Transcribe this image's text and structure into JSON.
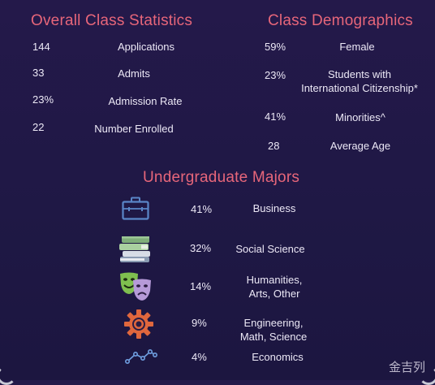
{
  "overall": {
    "title": "Overall Class Statistics",
    "rows": [
      {
        "value": "144",
        "label": "Applications"
      },
      {
        "value": "33",
        "label": "Admits"
      },
      {
        "value": "23%",
        "label": "Admission Rate"
      },
      {
        "value": "22",
        "label": "Number Enrolled"
      }
    ]
  },
  "demographics": {
    "title": "Class Demographics",
    "rows": [
      {
        "value": "59%",
        "label": "Female"
      },
      {
        "value": "23%",
        "label_line1": "Students with",
        "label_line2": "International Citizenship*"
      },
      {
        "value": "41%",
        "label": "Minorities^"
      },
      {
        "value": "28",
        "label": "Average Age"
      }
    ]
  },
  "majors": {
    "title": "Undergraduate Majors",
    "rows": [
      {
        "icon": "briefcase-icon",
        "value": "41%",
        "label": "Business"
      },
      {
        "icon": "books-icon",
        "value": "32%",
        "label": "Social Science"
      },
      {
        "icon": "theater-masks-icon",
        "value": "14%",
        "label_line1": "Humanities,",
        "label_line2": "Arts, Other"
      },
      {
        "icon": "gear-icon",
        "value": "9%",
        "label_line1": "Engineering,",
        "label_line2": "Math, Science"
      },
      {
        "icon": "line-graph-icon",
        "value": "4%",
        "label": "Economics"
      }
    ]
  },
  "colors": {
    "background": "#221a48",
    "title": "#e7667a",
    "text": "#ece8f6",
    "briefcase": "#5a86c8",
    "gear": "#e0673d"
  },
  "watermark": "金吉列"
}
